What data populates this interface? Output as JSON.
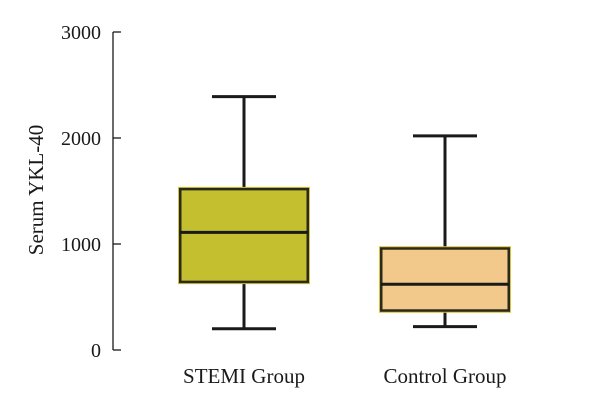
{
  "chart_data": {
    "type": "box",
    "title": "",
    "xlabel": "",
    "ylabel": "Serum YKL-40",
    "ylim": [
      0,
      3000
    ],
    "yticks": [
      0,
      1000,
      2000,
      3000
    ],
    "ytick_labels": [
      "0",
      "1000",
      "2000",
      "3000"
    ],
    "grid": false,
    "legend": "none",
    "categories": [
      "STEMI Group",
      "Control Group"
    ],
    "boxes": [
      {
        "whisker_low": 200,
        "q1": 640,
        "median": 1110,
        "q3": 1520,
        "whisker_high": 2390,
        "color": "#c4bf2f"
      },
      {
        "whisker_low": 220,
        "q1": 370,
        "median": 620,
        "q3": 960,
        "whisker_high": 2020,
        "color": "#f2c98a"
      }
    ]
  }
}
